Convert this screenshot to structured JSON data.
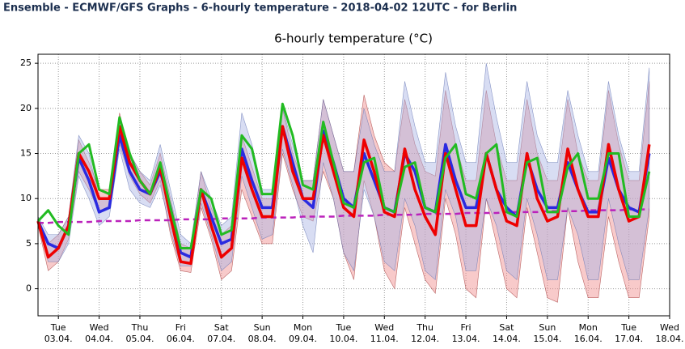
{
  "header": "Ensemble - ECMWF/GFS Graphs - 6-hourly temperature - 2018-04-02 12UTC - for Berlin",
  "chart_data": {
    "type": "line",
    "title": "6-hourly temperature (°C)",
    "x": [
      "02.04. 12UTC",
      "02.04. 18UTC",
      "03.04. 00UTC",
      "03.04. 06UTC",
      "03.04. 12UTC",
      "03.04. 18UTC",
      "04.04. 00UTC",
      "04.04. 06UTC",
      "04.04. 12UTC",
      "04.04. 18UTC",
      "05.04. 00UTC",
      "05.04. 06UTC",
      "05.04. 12UTC",
      "05.04. 18UTC",
      "06.04. 00UTC",
      "06.04. 06UTC",
      "06.04. 12UTC",
      "06.04. 18UTC",
      "07.04. 00UTC",
      "07.04. 06UTC",
      "07.04. 12UTC",
      "07.04. 18UTC",
      "08.04. 00UTC",
      "08.04. 06UTC",
      "08.04. 12UTC",
      "08.04. 18UTC",
      "09.04. 00UTC",
      "09.04. 06UTC",
      "09.04. 12UTC",
      "09.04. 18UTC",
      "10.04. 00UTC",
      "10.04. 06UTC",
      "10.04. 12UTC",
      "10.04. 18UTC",
      "11.04. 00UTC",
      "11.04. 06UTC",
      "11.04. 12UTC",
      "11.04. 18UTC",
      "12.04. 00UTC",
      "12.04. 06UTC",
      "12.04. 12UTC",
      "12.04. 18UTC",
      "13.04. 00UTC",
      "13.04. 06UTC",
      "13.04. 12UTC",
      "13.04. 18UTC",
      "14.04. 00UTC",
      "14.04. 06UTC",
      "14.04. 12UTC",
      "14.04. 18UTC",
      "15.04. 00UTC",
      "15.04. 06UTC",
      "15.04. 12UTC",
      "15.04. 18UTC",
      "16.04. 00UTC",
      "16.04. 06UTC",
      "16.04. 12UTC",
      "16.04. 18UTC",
      "17.04. 00UTC",
      "17.04. 06UTC",
      "17.04. 12UTC"
    ],
    "xlim": [
      "02.04. 12UTC",
      "18.04. 00UTC"
    ],
    "xticks": [
      {
        "value": "03.04. 00UTC",
        "day": "Tue",
        "label": "03.04."
      },
      {
        "value": "04.04. 00UTC",
        "day": "Wed",
        "label": "04.04."
      },
      {
        "value": "05.04. 00UTC",
        "day": "Thu",
        "label": "05.04."
      },
      {
        "value": "06.04. 00UTC",
        "day": "Fri",
        "label": "06.04."
      },
      {
        "value": "07.04. 00UTC",
        "day": "Sat",
        "label": "07.04."
      },
      {
        "value": "08.04. 00UTC",
        "day": "Sun",
        "label": "08.04."
      },
      {
        "value": "09.04. 00UTC",
        "day": "Mon",
        "label": "09.04."
      },
      {
        "value": "10.04. 00UTC",
        "day": "Tue",
        "label": "10.04."
      },
      {
        "value": "11.04. 00UTC",
        "day": "Wed",
        "label": "11.04."
      },
      {
        "value": "12.04. 00UTC",
        "day": "Thu",
        "label": "12.04."
      },
      {
        "value": "13.04. 00UTC",
        "day": "Fri",
        "label": "13.04."
      },
      {
        "value": "14.04. 00UTC",
        "day": "Sat",
        "label": "14.04."
      },
      {
        "value": "15.04. 00UTC",
        "day": "Sun",
        "label": "15.04."
      },
      {
        "value": "16.04. 00UTC",
        "day": "Mon",
        "label": "16.04."
      },
      {
        "value": "17.04. 00UTC",
        "day": "Tue",
        "label": "17.04."
      },
      {
        "value": "18.04. 00UTC",
        "day": "Wed",
        "label": "18.04."
      }
    ],
    "ylim": [
      -3,
      26
    ],
    "yticks": [
      0,
      5,
      10,
      15,
      20,
      25
    ],
    "grid": true,
    "bands": [
      {
        "color": "#f08a8a",
        "edge": "#a03030",
        "lower": [
          7,
          2,
          3,
          5.5,
          13,
          11,
          8.5,
          9,
          16,
          12.5,
          10.5,
          9.5,
          12,
          6,
          2,
          1.8,
          9,
          5.5,
          1,
          2,
          11,
          8,
          5,
          5,
          15,
          11,
          8,
          7.5,
          13,
          10,
          4,
          1,
          12,
          8,
          2,
          0,
          9,
          5,
          1,
          -0.5,
          10,
          6,
          0,
          -1,
          10,
          5,
          0,
          -1,
          9,
          4,
          -1,
          -1.5,
          9,
          3,
          -1,
          -1,
          8,
          3,
          -1,
          -1,
          8
        ],
        "upper": [
          8,
          5,
          6,
          8,
          16.5,
          14,
          11,
          11,
          19.5,
          15,
          13,
          11.5,
          15,
          10,
          5,
          4.5,
          13,
          9,
          6,
          7,
          17,
          13.5,
          10,
          10,
          20,
          15,
          12,
          12,
          21,
          17,
          13,
          13,
          21.5,
          17,
          14,
          13,
          21,
          16,
          13,
          12.5,
          22,
          16,
          12,
          12,
          22,
          16,
          12,
          12,
          21,
          15,
          12,
          12,
          21,
          15,
          12,
          12,
          22,
          16,
          12,
          12,
          23
        ]
      },
      {
        "color": "#a8b4e4",
        "edge": "#6070b0",
        "lower": [
          7,
          3,
          3,
          5,
          12.5,
          10,
          7,
          8,
          15.5,
          11,
          9.5,
          9,
          11.5,
          6.5,
          2.5,
          2.5,
          9.5,
          6,
          2,
          3,
          12.5,
          9,
          5.5,
          6,
          15.5,
          11.5,
          7,
          4,
          14,
          10,
          4,
          2,
          11,
          8,
          3,
          2,
          10,
          7,
          2,
          1,
          11,
          8,
          2,
          2,
          10,
          7,
          2,
          1,
          10,
          6,
          1,
          1,
          9,
          6,
          1,
          1,
          10,
          5,
          1,
          1,
          9
        ],
        "upper": [
          8,
          6,
          6,
          8,
          17,
          15,
          10,
          10,
          19,
          15,
          13,
          12,
          16,
          11,
          6,
          5,
          13,
          10,
          7,
          8,
          19.5,
          16,
          11,
          11,
          20,
          16,
          12,
          12,
          21,
          17,
          13,
          13,
          20,
          16,
          13,
          13,
          23,
          18,
          14,
          14,
          24,
          18,
          14,
          14,
          25,
          19,
          14,
          14,
          23,
          17,
          14,
          14,
          22,
          17,
          13,
          13,
          23,
          17,
          13,
          13,
          24.5
        ]
      }
    ],
    "series": [
      {
        "color": "#bb22bb",
        "dashed": true,
        "width": 2.5,
        "values": [
          7.3,
          7.3,
          7.4,
          7.4,
          7.4,
          7.4,
          7.5,
          7.5,
          7.5,
          7.5,
          7.6,
          7.6,
          7.6,
          7.6,
          7.7,
          7.7,
          7.7,
          7.7,
          7.8,
          7.8,
          7.8,
          7.8,
          7.9,
          7.9,
          7.9,
          7.9,
          8.0,
          8.0,
          8.0,
          8.0,
          8.1,
          8.1,
          8.1,
          8.1,
          8.2,
          8.2,
          8.2,
          8.2,
          8.3,
          8.3,
          8.3,
          8.3,
          8.4,
          8.4,
          8.4,
          8.4,
          8.5,
          8.5,
          8.5,
          8.5,
          8.6,
          8.6,
          8.6,
          8.6,
          8.7,
          8.7,
          8.7,
          8.7,
          8.8,
          8.8,
          8.8
        ]
      },
      {
        "color": "#2a2ae0",
        "width": 3.5,
        "values": [
          7.5,
          5,
          4.5,
          7,
          14.5,
          12,
          8.5,
          9,
          17,
          13,
          11,
          10.5,
          13,
          9,
          4,
          3.5,
          11,
          8,
          5,
          5.5,
          15.5,
          12,
          9,
          9,
          18,
          14,
          10,
          9,
          17.5,
          14,
          10,
          9,
          15,
          12,
          9,
          8.5,
          15,
          13,
          9,
          8.5,
          16,
          12,
          9,
          9,
          15,
          11,
          9,
          8,
          14.5,
          11,
          9,
          9,
          14,
          11,
          8.5,
          8.5,
          14.5,
          11,
          9,
          8.5,
          15
        ]
      },
      {
        "color": "#ee0000",
        "width": 3.5,
        "values": [
          7.5,
          3.5,
          4.5,
          7,
          15,
          13,
          10,
          10,
          18,
          14,
          12,
          10.5,
          13.5,
          8,
          3,
          2.8,
          11,
          7,
          3.5,
          4.5,
          14.5,
          11,
          8,
          8,
          18,
          13,
          10,
          10,
          17,
          13,
          9,
          8,
          16.5,
          13,
          8.5,
          8,
          15.5,
          11,
          8,
          6,
          15,
          11,
          7,
          7,
          15,
          11,
          7.5,
          7,
          15,
          10,
          7.5,
          8,
          15.5,
          11,
          8,
          8,
          16,
          11,
          7.5,
          8,
          16
        ]
      },
      {
        "color": "#22bb22",
        "width": 3,
        "values": [
          7.5,
          8.7,
          7,
          6,
          15,
          16,
          11,
          10.5,
          19,
          15,
          12,
          10.5,
          14,
          9,
          4.5,
          4.5,
          11,
          10,
          6,
          6.5,
          17,
          15.5,
          10.5,
          10.5,
          20.5,
          17,
          11.5,
          11,
          18.5,
          14,
          9.5,
          9,
          14,
          14.5,
          9,
          8.5,
          13.5,
          14,
          9,
          8.5,
          14.5,
          16,
          10.5,
          10,
          15,
          16,
          8.5,
          8,
          14,
          14.5,
          8.5,
          8.5,
          13.5,
          15,
          10,
          10,
          15,
          15,
          8,
          8,
          13
        ]
      }
    ]
  }
}
